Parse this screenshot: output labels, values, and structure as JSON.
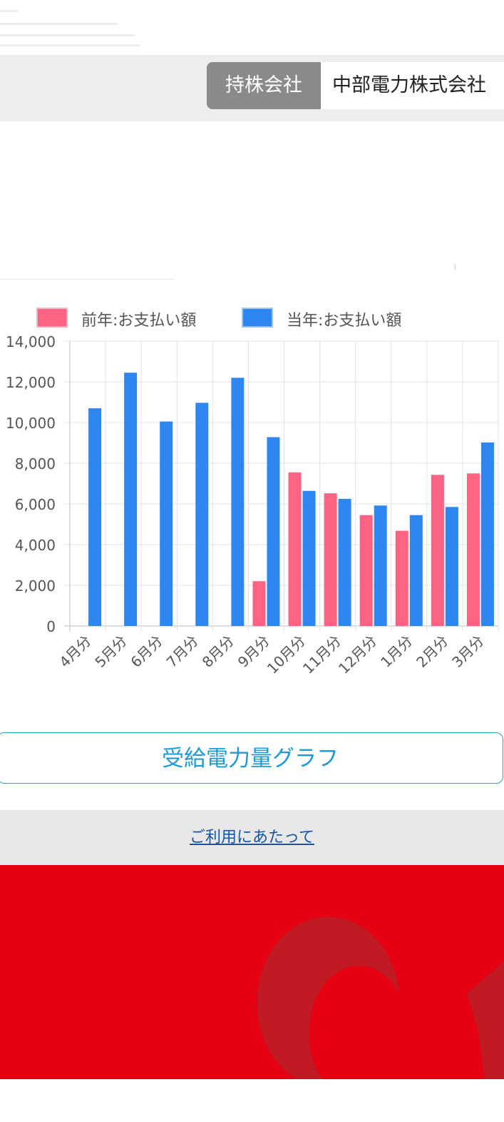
{
  "company": {
    "label": "持株会社",
    "name": "中部電力株式会社"
  },
  "chart_data": {
    "type": "bar",
    "categories": [
      "4月分",
      "5月分",
      "6月分",
      "7月分",
      "8月分",
      "9月分",
      "10月分",
      "11月分",
      "12月分",
      "1月分",
      "2月分",
      "3月分"
    ],
    "series": [
      {
        "name": "前年:お支払い額",
        "color": "#ff6384",
        "values": [
          null,
          null,
          null,
          null,
          null,
          2200,
          7550,
          6520,
          5450,
          4680,
          7430,
          7500
        ]
      },
      {
        "name": "当年:お支払い額",
        "color": "#2e86f0",
        "values": [
          10700,
          12450,
          10050,
          10970,
          12200,
          9280,
          6640,
          6250,
          5920,
          5450,
          5850,
          9020
        ]
      }
    ],
    "y_ticks": [
      "0",
      "2,000",
      "4,000",
      "6,000",
      "8,000",
      "10,000",
      "12,000",
      "14,000"
    ],
    "ylim": [
      0,
      14000
    ],
    "legend_position": "top",
    "grid": true
  },
  "graph_button": {
    "label": "受給電力量グラフ"
  },
  "footer": {
    "link_label": "ご利用にあたって"
  },
  "colors": {
    "brand_red": "#e50012",
    "link_blue": "#1656a5",
    "button_text": "#1e9ad6"
  }
}
